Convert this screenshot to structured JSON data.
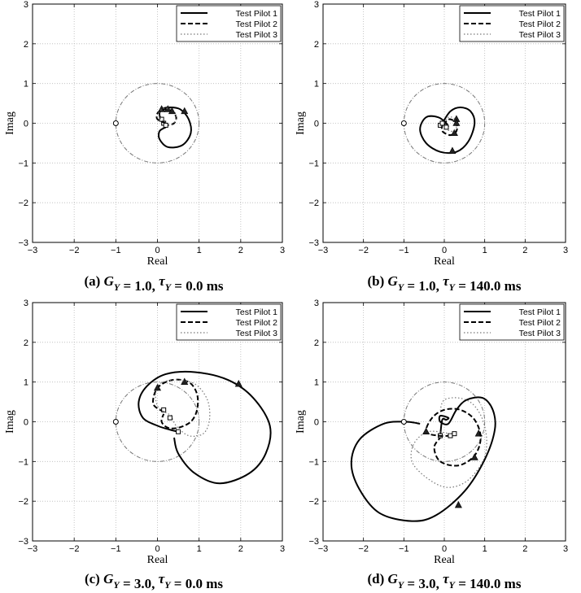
{
  "chart_data": [
    {
      "type": "line",
      "caption": [
        "(a) ",
        "G",
        "Y",
        " = 1.0, ",
        "τ",
        "Y",
        " = 0.0 ms"
      ],
      "xlabel": "Real",
      "ylabel": "Imag",
      "xlim": [
        -3,
        3
      ],
      "ylim": [
        -3,
        3
      ],
      "xticks": [
        "−3",
        "−2",
        "−1",
        "0",
        "1",
        "2",
        "3"
      ],
      "yticks": [
        "3",
        "2",
        "1",
        "0",
        "−1",
        "−2",
        "−3"
      ],
      "grid": true,
      "legend_position": "top-right",
      "critical_point": [
        -1,
        0
      ],
      "unit_circle": true,
      "series": [
        {
          "name": "Test Pilot 1",
          "style": "solid",
          "points": [
            [
              0.15,
              -0.02
            ],
            [
              0.05,
              0.2
            ],
            [
              0.1,
              0.35
            ],
            [
              0.3,
              0.4
            ],
            [
              0.55,
              0.35
            ],
            [
              0.75,
              0.1
            ],
            [
              0.8,
              -0.25
            ],
            [
              0.6,
              -0.55
            ],
            [
              0.25,
              -0.6
            ],
            [
              0.05,
              -0.4
            ],
            [
              0.05,
              -0.2
            ],
            [
              0.2,
              -0.1
            ]
          ],
          "triangles": [
            [
              0.1,
              0.35
            ],
            [
              0.65,
              0.3
            ]
          ],
          "squares": [
            [
              0.15,
              0.0
            ]
          ]
        },
        {
          "name": "Test Pilot 2",
          "style": "dashed",
          "points": [
            [
              0.2,
              0.0
            ],
            [
              0.0,
              0.1
            ],
            [
              0.0,
              0.25
            ],
            [
              0.15,
              0.35
            ],
            [
              0.35,
              0.3
            ],
            [
              0.45,
              0.15
            ],
            [
              0.4,
              0.0
            ],
            [
              0.25,
              -0.05
            ]
          ],
          "triangles": [
            [
              0.25,
              0.35
            ]
          ],
          "squares": [
            [
              0.1,
              0.1
            ]
          ]
        },
        {
          "name": "Test Pilot 3",
          "style": "dotted",
          "points": [
            [
              0.2,
              0.0
            ],
            [
              0.05,
              0.15
            ],
            [
              0.05,
              0.3
            ],
            [
              0.2,
              0.38
            ],
            [
              0.4,
              0.3
            ],
            [
              0.45,
              0.1
            ],
            [
              0.35,
              -0.02
            ],
            [
              0.25,
              -0.05
            ]
          ],
          "triangles": [
            [
              0.35,
              0.3
            ]
          ],
          "squares": [
            [
              0.2,
              -0.05
            ]
          ]
        }
      ]
    },
    {
      "type": "line",
      "caption": [
        "(b) ",
        "G",
        "Y",
        " = 1.0, ",
        "τ",
        "Y",
        " = 140.0 ms"
      ],
      "xlabel": "Real",
      "ylabel": "Imag",
      "xlim": [
        -3,
        3
      ],
      "ylim": [
        -3,
        3
      ],
      "xticks": [
        "−3",
        "−2",
        "−1",
        "0",
        "1",
        "2",
        "3"
      ],
      "yticks": [
        "3",
        "2",
        "1",
        "0",
        "−1",
        "−2",
        "−3"
      ],
      "grid": true,
      "legend_position": "top-right",
      "critical_point": [
        -1,
        0
      ],
      "unit_circle": true,
      "series": [
        {
          "name": "Test Pilot 1",
          "style": "solid",
          "points": [
            [
              -0.05,
              0.0
            ],
            [
              0.15,
              0.3
            ],
            [
              0.4,
              0.4
            ],
            [
              0.65,
              0.3
            ],
            [
              0.75,
              0.0
            ],
            [
              0.6,
              -0.45
            ],
            [
              0.3,
              -0.72
            ],
            [
              -0.1,
              -0.72
            ],
            [
              -0.45,
              -0.5
            ],
            [
              -0.6,
              -0.15
            ],
            [
              -0.45,
              0.15
            ],
            [
              -0.15,
              0.15
            ],
            [
              0.05,
              0.0
            ],
            [
              0.1,
              -0.1
            ]
          ],
          "triangles": [
            [
              0.2,
              -0.7
            ],
            [
              0.3,
              0.1
            ]
          ],
          "squares": [
            [
              -0.1,
              -0.05
            ]
          ]
        },
        {
          "name": "Test Pilot 2",
          "style": "dashed",
          "points": [
            [
              0.0,
              -0.05
            ],
            [
              0.05,
              0.05
            ],
            [
              0.15,
              0.1
            ],
            [
              0.3,
              0.0
            ],
            [
              0.3,
              -0.2
            ],
            [
              0.15,
              -0.3
            ],
            [
              -0.05,
              -0.2
            ],
            [
              -0.05,
              -0.05
            ]
          ],
          "triangles": [
            [
              0.25,
              -0.25
            ]
          ],
          "squares": [
            [
              0.05,
              -0.1
            ]
          ]
        },
        {
          "name": "Test Pilot 3",
          "style": "dotted",
          "points": [
            [
              0.0,
              0.0
            ],
            [
              0.1,
              0.15
            ],
            [
              0.25,
              0.12
            ],
            [
              0.32,
              -0.05
            ],
            [
              0.2,
              -0.2
            ],
            [
              0.05,
              -0.15
            ]
          ],
          "triangles": [
            [
              0.3,
              0.0
            ]
          ],
          "squares": [
            [
              -0.05,
              0.0
            ]
          ]
        }
      ]
    },
    {
      "type": "line",
      "caption": [
        "(c) ",
        "G",
        "Y",
        " = 3.0, ",
        "τ",
        "Y",
        " = 0.0 ms"
      ],
      "xlabel": "Real",
      "ylabel": "Imag",
      "xlim": [
        -3,
        3
      ],
      "ylim": [
        -3,
        3
      ],
      "xticks": [
        "−3",
        "−2",
        "−1",
        "0",
        "1",
        "2",
        "3"
      ],
      "yticks": [
        "3",
        "2",
        "1",
        "0",
        "−1",
        "−2",
        "−3"
      ],
      "grid": true,
      "legend_position": "top-right",
      "critical_point": [
        -1,
        0
      ],
      "unit_circle": true,
      "series": [
        {
          "name": "Test Pilot 1",
          "style": "solid",
          "points": [
            [
              0.5,
              -0.25
            ],
            [
              0.3,
              -0.2
            ],
            [
              0.0,
              -0.1
            ],
            [
              -0.35,
              0.1
            ],
            [
              -0.45,
              0.5
            ],
            [
              -0.25,
              0.9
            ],
            [
              0.2,
              1.2
            ],
            [
              0.9,
              1.25
            ],
            [
              1.7,
              1.05
            ],
            [
              2.3,
              0.6
            ],
            [
              2.7,
              -0.1
            ],
            [
              2.6,
              -0.8
            ],
            [
              2.2,
              -1.3
            ],
            [
              1.5,
              -1.55
            ],
            [
              0.9,
              -1.3
            ],
            [
              0.5,
              -0.8
            ],
            [
              0.4,
              -0.4
            ]
          ],
          "triangles": [
            [
              1.95,
              0.95
            ]
          ],
          "squares": [
            [
              0.5,
              -0.25
            ]
          ]
        },
        {
          "name": "Test Pilot 2",
          "style": "dashed",
          "points": [
            [
              0.15,
              0.25
            ],
            [
              -0.1,
              0.45
            ],
            [
              0.0,
              0.85
            ],
            [
              0.35,
              1.05
            ],
            [
              0.75,
              1.0
            ],
            [
              0.95,
              0.7
            ],
            [
              0.95,
              0.3
            ],
            [
              0.8,
              0.0
            ],
            [
              0.5,
              -0.15
            ],
            [
              0.25,
              -0.15
            ],
            [
              0.1,
              0.0
            ],
            [
              0.15,
              0.2
            ]
          ],
          "triangles": [
            [
              0.65,
              1.0
            ]
          ],
          "squares": [
            [
              0.15,
              0.3
            ]
          ]
        },
        {
          "name": "Test Pilot 3",
          "style": "dotted",
          "points": [
            [
              0.35,
              0.15
            ],
            [
              0.0,
              0.4
            ],
            [
              0.0,
              0.9
            ],
            [
              0.4,
              1.05
            ],
            [
              0.9,
              0.95
            ],
            [
              1.2,
              0.55
            ],
            [
              1.25,
              0.05
            ],
            [
              1.1,
              -0.3
            ],
            [
              0.75,
              -0.35
            ],
            [
              0.45,
              -0.1
            ],
            [
              0.35,
              0.1
            ]
          ],
          "triangles": [
            [
              0.0,
              0.85
            ]
          ],
          "squares": [
            [
              0.3,
              0.1
            ]
          ]
        }
      ]
    },
    {
      "type": "line",
      "caption": [
        "(d) ",
        "G",
        "Y",
        " = 3.0, ",
        "τ",
        "Y",
        " = 140.0 ms"
      ],
      "xlabel": "Real",
      "ylabel": "Imag",
      "xlim": [
        -3,
        3
      ],
      "ylim": [
        -3,
        3
      ],
      "xticks": [
        "−3",
        "−2",
        "−1",
        "0",
        "1",
        "2",
        "3"
      ],
      "yticks": [
        "3",
        "2",
        "1",
        "0",
        "−1",
        "−2",
        "−3"
      ],
      "grid": true,
      "legend_position": "top-right",
      "critical_point": [
        -1,
        0
      ],
      "unit_circle": true,
      "series": [
        {
          "name": "Test Pilot 1",
          "style": "solid",
          "points": [
            [
              -0.1,
              -0.35
            ],
            [
              -0.05,
              0.05
            ],
            [
              0.05,
              0.05
            ],
            [
              0.1,
              0.1
            ],
            [
              -0.1,
              0.15
            ],
            [
              -0.1,
              0.0
            ],
            [
              0.1,
              -0.05
            ],
            [
              0.3,
              0.3
            ],
            [
              0.55,
              0.55
            ],
            [
              0.95,
              0.6
            ],
            [
              1.2,
              0.3
            ],
            [
              1.25,
              -0.2
            ],
            [
              1.0,
              -0.95
            ],
            [
              0.5,
              -1.75
            ],
            [
              -0.2,
              -2.35
            ],
            [
              -0.8,
              -2.5
            ],
            [
              -1.6,
              -2.3
            ],
            [
              -2.1,
              -1.7
            ],
            [
              -2.3,
              -1.05
            ],
            [
              -2.1,
              -0.45
            ],
            [
              -1.5,
              -0.05
            ],
            [
              -0.95,
              0.0
            ],
            [
              -0.6,
              -0.05
            ]
          ],
          "triangles": [
            [
              0.35,
              -2.1
            ],
            [
              0.85,
              -0.3
            ]
          ],
          "squares": [
            [
              -0.1,
              -0.35
            ]
          ]
        },
        {
          "name": "Test Pilot 2",
          "style": "dashed",
          "points": [
            [
              0.15,
              -0.35
            ],
            [
              -0.15,
              -0.35
            ],
            [
              -0.45,
              -0.25
            ],
            [
              -0.3,
              0.1
            ],
            [
              0.0,
              0.3
            ],
            [
              0.4,
              0.3
            ],
            [
              0.75,
              0.05
            ],
            [
              0.9,
              -0.4
            ],
            [
              0.75,
              -0.85
            ],
            [
              0.35,
              -1.1
            ],
            [
              -0.1,
              -1.0
            ],
            [
              -0.25,
              -0.65
            ],
            [
              -0.1,
              -0.4
            ]
          ],
          "triangles": [
            [
              0.75,
              -0.9
            ]
          ],
          "squares": [
            [
              0.15,
              -0.35
            ]
          ]
        },
        {
          "name": "Test Pilot 3",
          "style": "dotted",
          "points": [
            [
              0.15,
              -0.3
            ],
            [
              -0.4,
              -0.25
            ],
            [
              -0.75,
              -0.55
            ],
            [
              -0.8,
              -1.0
            ],
            [
              -0.45,
              -1.4
            ],
            [
              0.05,
              -1.65
            ],
            [
              0.55,
              -1.5
            ],
            [
              0.95,
              -1.0
            ],
            [
              1.05,
              -0.5
            ],
            [
              0.95,
              0.05
            ],
            [
              0.7,
              0.45
            ],
            [
              0.35,
              0.6
            ],
            [
              0.0,
              0.55
            ],
            [
              -0.1,
              0.3
            ]
          ],
          "triangles": [
            [
              -0.45,
              -0.25
            ]
          ],
          "squares": [
            [
              0.25,
              -0.3
            ]
          ]
        }
      ]
    }
  ]
}
